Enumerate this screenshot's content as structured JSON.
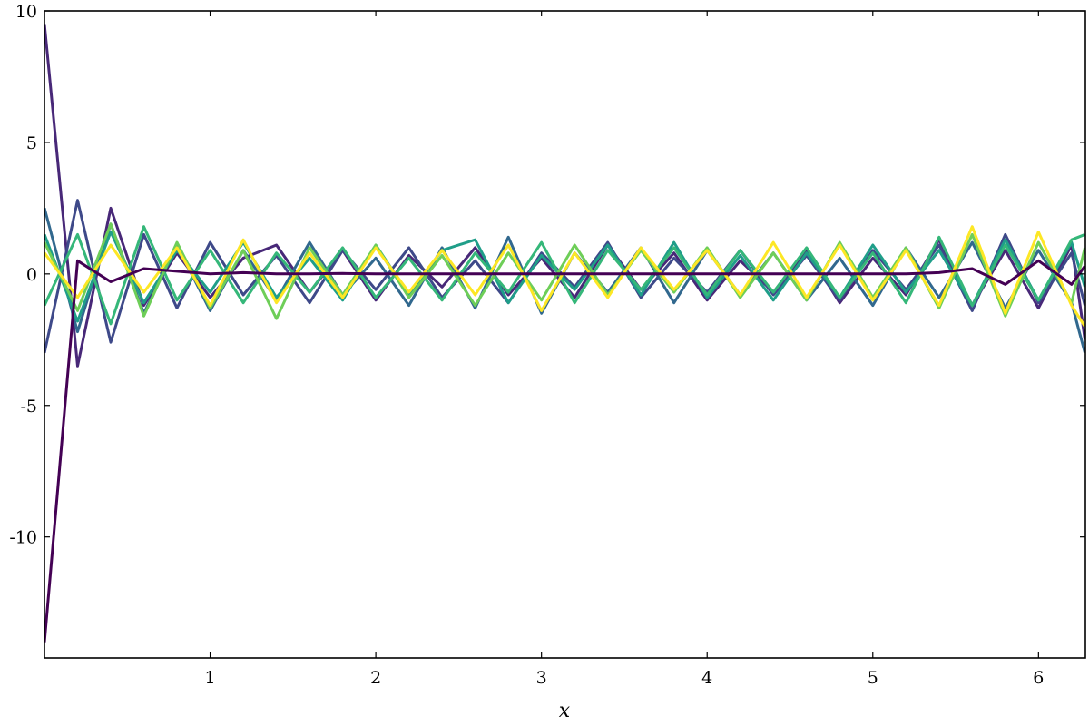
{
  "chart_data": {
    "type": "line",
    "x_label": "x",
    "x": [
      0,
      0.2,
      0.4,
      0.6,
      0.8,
      1,
      1.2,
      1.4,
      1.6,
      1.8,
      2,
      2.2,
      2.4,
      2.6,
      2.8,
      3,
      3.2,
      3.4,
      3.6,
      3.8,
      4,
      4.2,
      4.4,
      4.6,
      4.8,
      5,
      5.2,
      5.4,
      5.6,
      5.8,
      6,
      6.2,
      6.28
    ],
    "series": [
      {
        "color": "#482878",
        "values": [
          9.5,
          -3.5,
          2.5,
          -1.2,
          0.8,
          -0.9,
          0.6,
          1.1,
          -0.7,
          0.9,
          -1,
          0.7,
          -0.5,
          1.0,
          -0.8,
          0.6,
          -0.9,
          1.1,
          -0.6,
          0.8,
          -1.0,
          0.5,
          -0.7,
          0.9,
          -1.1,
          0.6,
          -0.8,
          1.3,
          -1.2,
          0.9,
          -1.3,
          1.1,
          -2.5
        ]
      },
      {
        "color": "#3e4989",
        "values": [
          -3,
          2.8,
          -2.6,
          1.5,
          -1.3,
          1.2,
          -0.8,
          0.7,
          -1.1,
          0.9,
          -0.6,
          1.0,
          -0.9,
          0.5,
          -1.1,
          0.8,
          -0.5,
          1.2,
          -0.9,
          0.6,
          -0.7,
          0.9,
          -0.8,
          0.7,
          -1.0,
          0.9,
          -0.6,
          1.1,
          -1.4,
          1.5,
          -1.1,
          0.8,
          -1.2
        ]
      },
      {
        "color": "#31688e",
        "values": [
          2.5,
          -2.2,
          1.9,
          -1.5,
          1.1,
          -1.4,
          0.9,
          -1.0,
          1.2,
          -0.8,
          0.6,
          -1.2,
          1.0,
          -1.3,
          1.4,
          -1.5,
          0.8,
          -0.7,
          1.0,
          -1.1,
          0.9,
          -0.8,
          0.8,
          -1.0,
          0.6,
          -1.2,
          1.0,
          -0.9,
          1.2,
          -1.3,
          0.9,
          -1.1,
          -3
        ]
      },
      {
        "color": "#1f9e89",
        "values": [
          1.5,
          -1.8,
          1.6,
          -1.1,
          0.9,
          -0.7,
          1.2,
          -0.9,
          0.6,
          -1.0,
          1.1,
          -0.8,
          0.9,
          1.3,
          -1.1,
          0.7,
          -0.6,
          1.1,
          -0.8,
          1.2,
          -0.9,
          0.7,
          -1.0,
          0.8,
          -0.9,
          1.1,
          -0.7,
          0.9,
          -1.2,
          1.3,
          -1.0,
          1.2,
          -0.5
        ]
      },
      {
        "color": "#35b779",
        "values": [
          -1.2,
          1.5,
          -1.9,
          1.8,
          -1.0,
          0.9,
          -1.1,
          0.8,
          -0.7,
          1.0,
          -0.9,
          0.6,
          -1.0,
          0.8,
          -0.7,
          1.2,
          -1.1,
          0.9,
          -0.6,
          1.0,
          -0.8,
          0.9,
          -0.7,
          1.0,
          -0.9,
          0.8,
          -1.1,
          1.4,
          -1.2,
          1.1,
          -1.0,
          1.3,
          1.5
        ]
      },
      {
        "color": "#6ece58",
        "values": [
          1.2,
          -1.4,
          1.9,
          -1.6,
          1.2,
          -1.3,
          0.9,
          -1.7,
          1.0,
          -0.8,
          1.1,
          -0.9,
          0.7,
          -1.2,
          0.8,
          -1.0,
          1.1,
          -0.8,
          0.9,
          -0.7,
          1.0,
          -0.9,
          0.8,
          -1.0,
          1.2,
          -0.9,
          1.0,
          -1.3,
          1.5,
          -1.6,
          1.2,
          -1.1,
          1.0
        ]
      },
      {
        "color": "#fde725",
        "values": [
          0.8,
          -0.9,
          1.1,
          -0.7,
          1.0,
          -1.2,
          1.3,
          -1.1,
          0.8,
          -0.9,
          1.0,
          -0.7,
          0.9,
          -0.8,
          1.1,
          -1.4,
          0.8,
          -0.9,
          1.0,
          -0.6,
          0.9,
          -0.8,
          1.2,
          -0.9,
          1.1,
          -1.0,
          0.9,
          -1.2,
          1.8,
          -1.5,
          1.6,
          -1.2,
          -2
        ]
      },
      {
        "color": "#440154",
        "values": [
          -14,
          0.5,
          -0.3,
          0.2,
          0.1,
          0,
          0.05,
          0,
          0,
          0.02,
          0,
          0,
          0,
          0,
          0,
          0,
          0,
          0,
          0,
          0,
          0,
          0,
          0,
          0,
          0,
          0,
          0,
          0.05,
          0.2,
          -0.4,
          0.5,
          -0.4,
          0.3
        ]
      }
    ],
    "xlim": [
      0,
      6.283
    ],
    "xticks": [
      1,
      2,
      3,
      4,
      5,
      6
    ],
    "ylim": [
      -14.6,
      10
    ],
    "yticks": [
      10,
      5,
      0,
      -5,
      -10
    ],
    "grid": false
  }
}
